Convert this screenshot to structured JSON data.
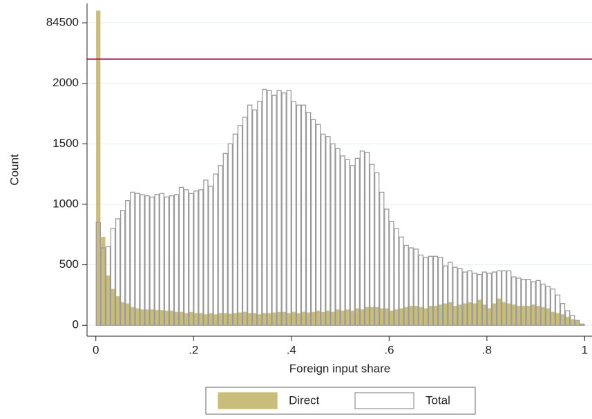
{
  "chart_data": {
    "type": "histogram",
    "x_label": "Foreign input share",
    "y_label": "Count",
    "bins": [
      0,
      0.01,
      0.02,
      0.03,
      0.04,
      0.05,
      0.06,
      0.07,
      0.08,
      0.09,
      0.1,
      0.11,
      0.12,
      0.13,
      0.14,
      0.15,
      0.16,
      0.17,
      0.18,
      0.19,
      0.2,
      0.21,
      0.22,
      0.23,
      0.24,
      0.25,
      0.26,
      0.27,
      0.28,
      0.29,
      0.3,
      0.31,
      0.32,
      0.33,
      0.34,
      0.35,
      0.36,
      0.37,
      0.38,
      0.39,
      0.4,
      0.41,
      0.42,
      0.43,
      0.44,
      0.45,
      0.46,
      0.47,
      0.48,
      0.49,
      0.5,
      0.51,
      0.52,
      0.53,
      0.54,
      0.55,
      0.56,
      0.57,
      0.58,
      0.59,
      0.6,
      0.61,
      0.62,
      0.63,
      0.64,
      0.65,
      0.66,
      0.67,
      0.68,
      0.69,
      0.7,
      0.71,
      0.72,
      0.73,
      0.74,
      0.75,
      0.76,
      0.77,
      0.78,
      0.79,
      0.8,
      0.81,
      0.82,
      0.83,
      0.84,
      0.85,
      0.86,
      0.87,
      0.88,
      0.89,
      0.9,
      0.91,
      0.92,
      0.93,
      0.94,
      0.95,
      0.96,
      0.97,
      0.98,
      0.99,
      1
    ],
    "series": [
      {
        "name": "Direct",
        "color": "#c9bd7a",
        "filled": true,
        "values": [
          84600,
          730,
          410,
          300,
          240,
          190,
          180,
          150,
          140,
          130,
          130,
          130,
          125,
          125,
          120,
          120,
          110,
          110,
          100,
          110,
          100,
          100,
          90,
          100,
          90,
          100,
          100,
          95,
          100,
          105,
          110,
          100,
          100,
          90,
          100,
          100,
          105,
          110,
          110,
          100,
          110,
          100,
          110,
          105,
          110,
          120,
          110,
          120,
          110,
          130,
          120,
          130,
          120,
          140,
          130,
          150,
          150,
          150,
          140,
          140,
          120,
          130,
          140,
          150,
          160,
          160,
          150,
          140,
          160,
          160,
          170,
          180,
          190,
          160,
          170,
          180,
          190,
          180,
          210,
          170,
          140,
          180,
          220,
          190,
          180,
          170,
          160,
          160,
          160,
          170,
          160,
          150,
          140,
          110,
          100,
          90,
          70,
          50,
          40,
          10
        ]
      },
      {
        "name": "Total",
        "color": "#9a9a9a",
        "filled": false,
        "values": [
          850,
          640,
          650,
          800,
          880,
          950,
          1030,
          1100,
          1090,
          1080,
          1070,
          1060,
          1080,
          1090,
          1060,
          1070,
          1080,
          1140,
          1120,
          1090,
          1110,
          1120,
          1200,
          1150,
          1250,
          1320,
          1420,
          1500,
          1580,
          1650,
          1720,
          1820,
          1780,
          1850,
          1950,
          1940,
          1900,
          1940,
          1920,
          1940,
          1850,
          1820,
          1820,
          1760,
          1700,
          1660,
          1580,
          1560,
          1500,
          1460,
          1400,
          1370,
          1320,
          1380,
          1440,
          1430,
          1330,
          1260,
          1100,
          960,
          860,
          800,
          730,
          660,
          640,
          630,
          580,
          560,
          570,
          570,
          560,
          490,
          520,
          480,
          470,
          440,
          450,
          430,
          420,
          440,
          430,
          440,
          450,
          450,
          450,
          400,
          390,
          380,
          380,
          360,
          370,
          340,
          320,
          300,
          250,
          180,
          120,
          80,
          40,
          10
        ]
      }
    ],
    "xlim": [
      -0.018,
      1.015
    ],
    "xticks": [
      0,
      {
        "value": 0.2,
        "label": ".2"
      },
      {
        "value": 0.4,
        "label": ".4"
      },
      {
        "value": 0.6,
        "label": ".6"
      },
      {
        "value": 0.8,
        "label": ".8"
      },
      1
    ],
    "ylim": [
      -90,
      84660
    ],
    "yticks": [
      0,
      500,
      1000,
      1500,
      2000,
      84500
    ],
    "y_break": [
      2200,
      84200
    ],
    "break_color": "#a3154a",
    "grid": true,
    "legend": "bottom"
  }
}
